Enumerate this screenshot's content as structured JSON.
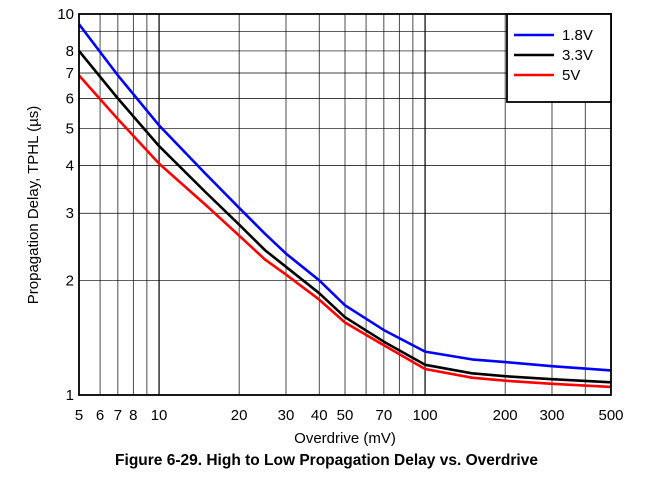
{
  "figure": {
    "caption": "Figure 6-29. High to Low Propagation Delay vs. Overdrive"
  },
  "chart_data": {
    "type": "line",
    "xlabel": "Overdrive (mV)",
    "ylabel": "Propagation Delay, TPHL (µs)",
    "xscale": "log",
    "yscale": "log",
    "xlim": [
      5,
      500
    ],
    "ylim": [
      1,
      10
    ],
    "x_ticks": [
      5,
      6,
      7,
      8,
      10,
      20,
      30,
      40,
      50,
      70,
      100,
      200,
      300,
      500
    ],
    "x_tick_labels": [
      "5",
      "6",
      "7",
      "8",
      "10",
      "20",
      "30",
      "40",
      "50",
      "70",
      "100",
      "200",
      "300",
      "500"
    ],
    "y_ticks": [
      1,
      2,
      3,
      4,
      5,
      6,
      7,
      8,
      10
    ],
    "y_tick_labels": [
      "1",
      "2",
      "3",
      "4",
      "5",
      "6",
      "7",
      "8",
      "10"
    ],
    "grid": true,
    "legend_position": "top-right",
    "series": [
      {
        "name": "1.8V",
        "color": "#0000ff",
        "x": [
          5,
          7,
          10,
          15,
          20,
          25,
          30,
          40,
          50,
          70,
          100,
          150,
          200,
          300,
          500
        ],
        "y": [
          9.4,
          6.9,
          5.1,
          3.8,
          3.1,
          2.65,
          2.35,
          2.0,
          1.72,
          1.48,
          1.3,
          1.24,
          1.22,
          1.19,
          1.16
        ]
      },
      {
        "name": "3.3V",
        "color": "#000000",
        "x": [
          5,
          7,
          10,
          15,
          20,
          25,
          30,
          40,
          50,
          70,
          100,
          150,
          200,
          300,
          500
        ],
        "y": [
          8.0,
          6.0,
          4.5,
          3.4,
          2.8,
          2.4,
          2.17,
          1.85,
          1.6,
          1.38,
          1.2,
          1.14,
          1.12,
          1.1,
          1.08
        ]
      },
      {
        "name": "5V",
        "color": "#ff0000",
        "x": [
          5,
          7,
          10,
          15,
          20,
          25,
          30,
          40,
          50,
          70,
          100,
          150,
          200,
          300,
          500
        ],
        "y": [
          6.9,
          5.3,
          4.05,
          3.15,
          2.62,
          2.27,
          2.07,
          1.78,
          1.55,
          1.35,
          1.17,
          1.11,
          1.09,
          1.07,
          1.05
        ]
      }
    ]
  }
}
